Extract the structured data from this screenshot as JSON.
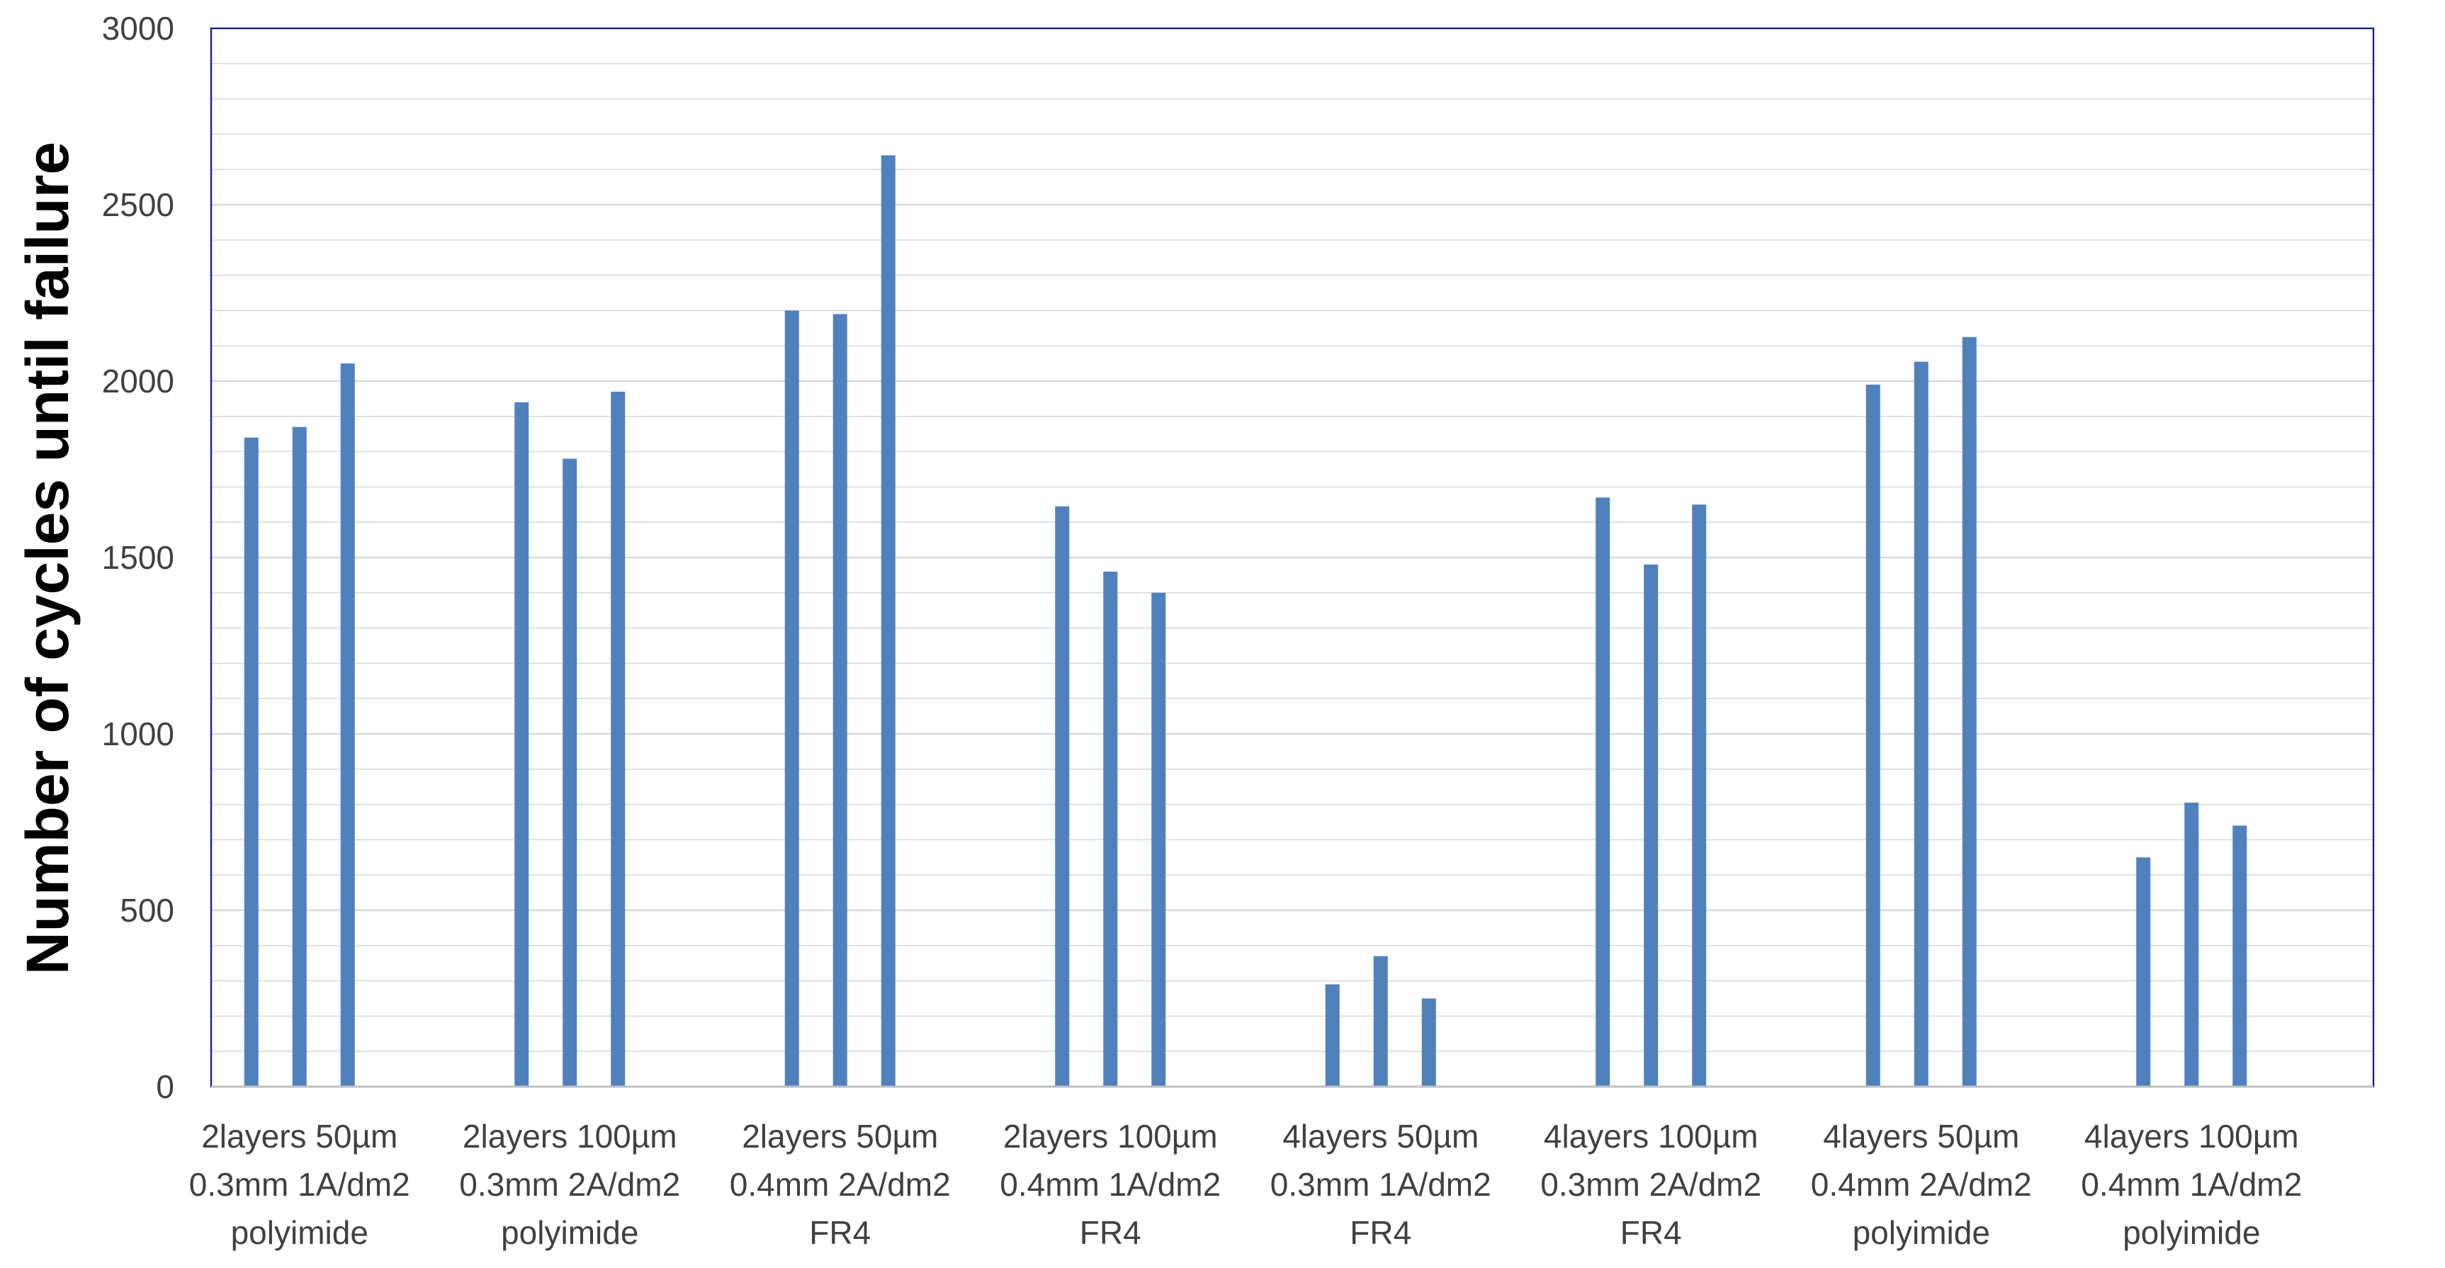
{
  "chart_data": {
    "type": "bar",
    "title": "",
    "xlabel": "",
    "ylabel": "Number of cycles until failure",
    "ylim": [
      0,
      3000
    ],
    "yticks": [
      0,
      500,
      1000,
      1500,
      2000,
      2500,
      3000
    ],
    "grid": true,
    "legend": "none",
    "bar_color": "#4F81BD",
    "grid_color": "#D9D9D9",
    "frame_color": "#1F1F8F",
    "categories": [
      [
        "2layers 50µm",
        "0.3mm 1A/dm2",
        "polyimide"
      ],
      [
        "2layers 100µm",
        "0.3mm 2A/dm2",
        "polyimide"
      ],
      [
        "2layers 50µm",
        "0.4mm 2A/dm2",
        "FR4"
      ],
      [
        "2layers 100µm",
        "0.4mm 1A/dm2",
        "FR4"
      ],
      [
        "4layers 50µm",
        "0.3mm 1A/dm2",
        "FR4"
      ],
      [
        "4layers 100µm",
        "0.3mm 2A/dm2",
        "FR4"
      ],
      [
        "4layers 50µm",
        "0.4mm 2A/dm2",
        "polyimide"
      ],
      [
        "4layers 100µm",
        "0.4mm 1A/dm2",
        "polyimide"
      ]
    ],
    "values": [
      [
        1840,
        1870,
        2050
      ],
      [
        1940,
        1780,
        1970
      ],
      [
        2200,
        2190,
        2640
      ],
      [
        1645,
        1460,
        1400
      ],
      [
        290,
        370,
        250
      ],
      [
        1670,
        1480,
        1650
      ],
      [
        1990,
        2055,
        2125
      ],
      [
        650,
        805,
        740
      ]
    ]
  }
}
